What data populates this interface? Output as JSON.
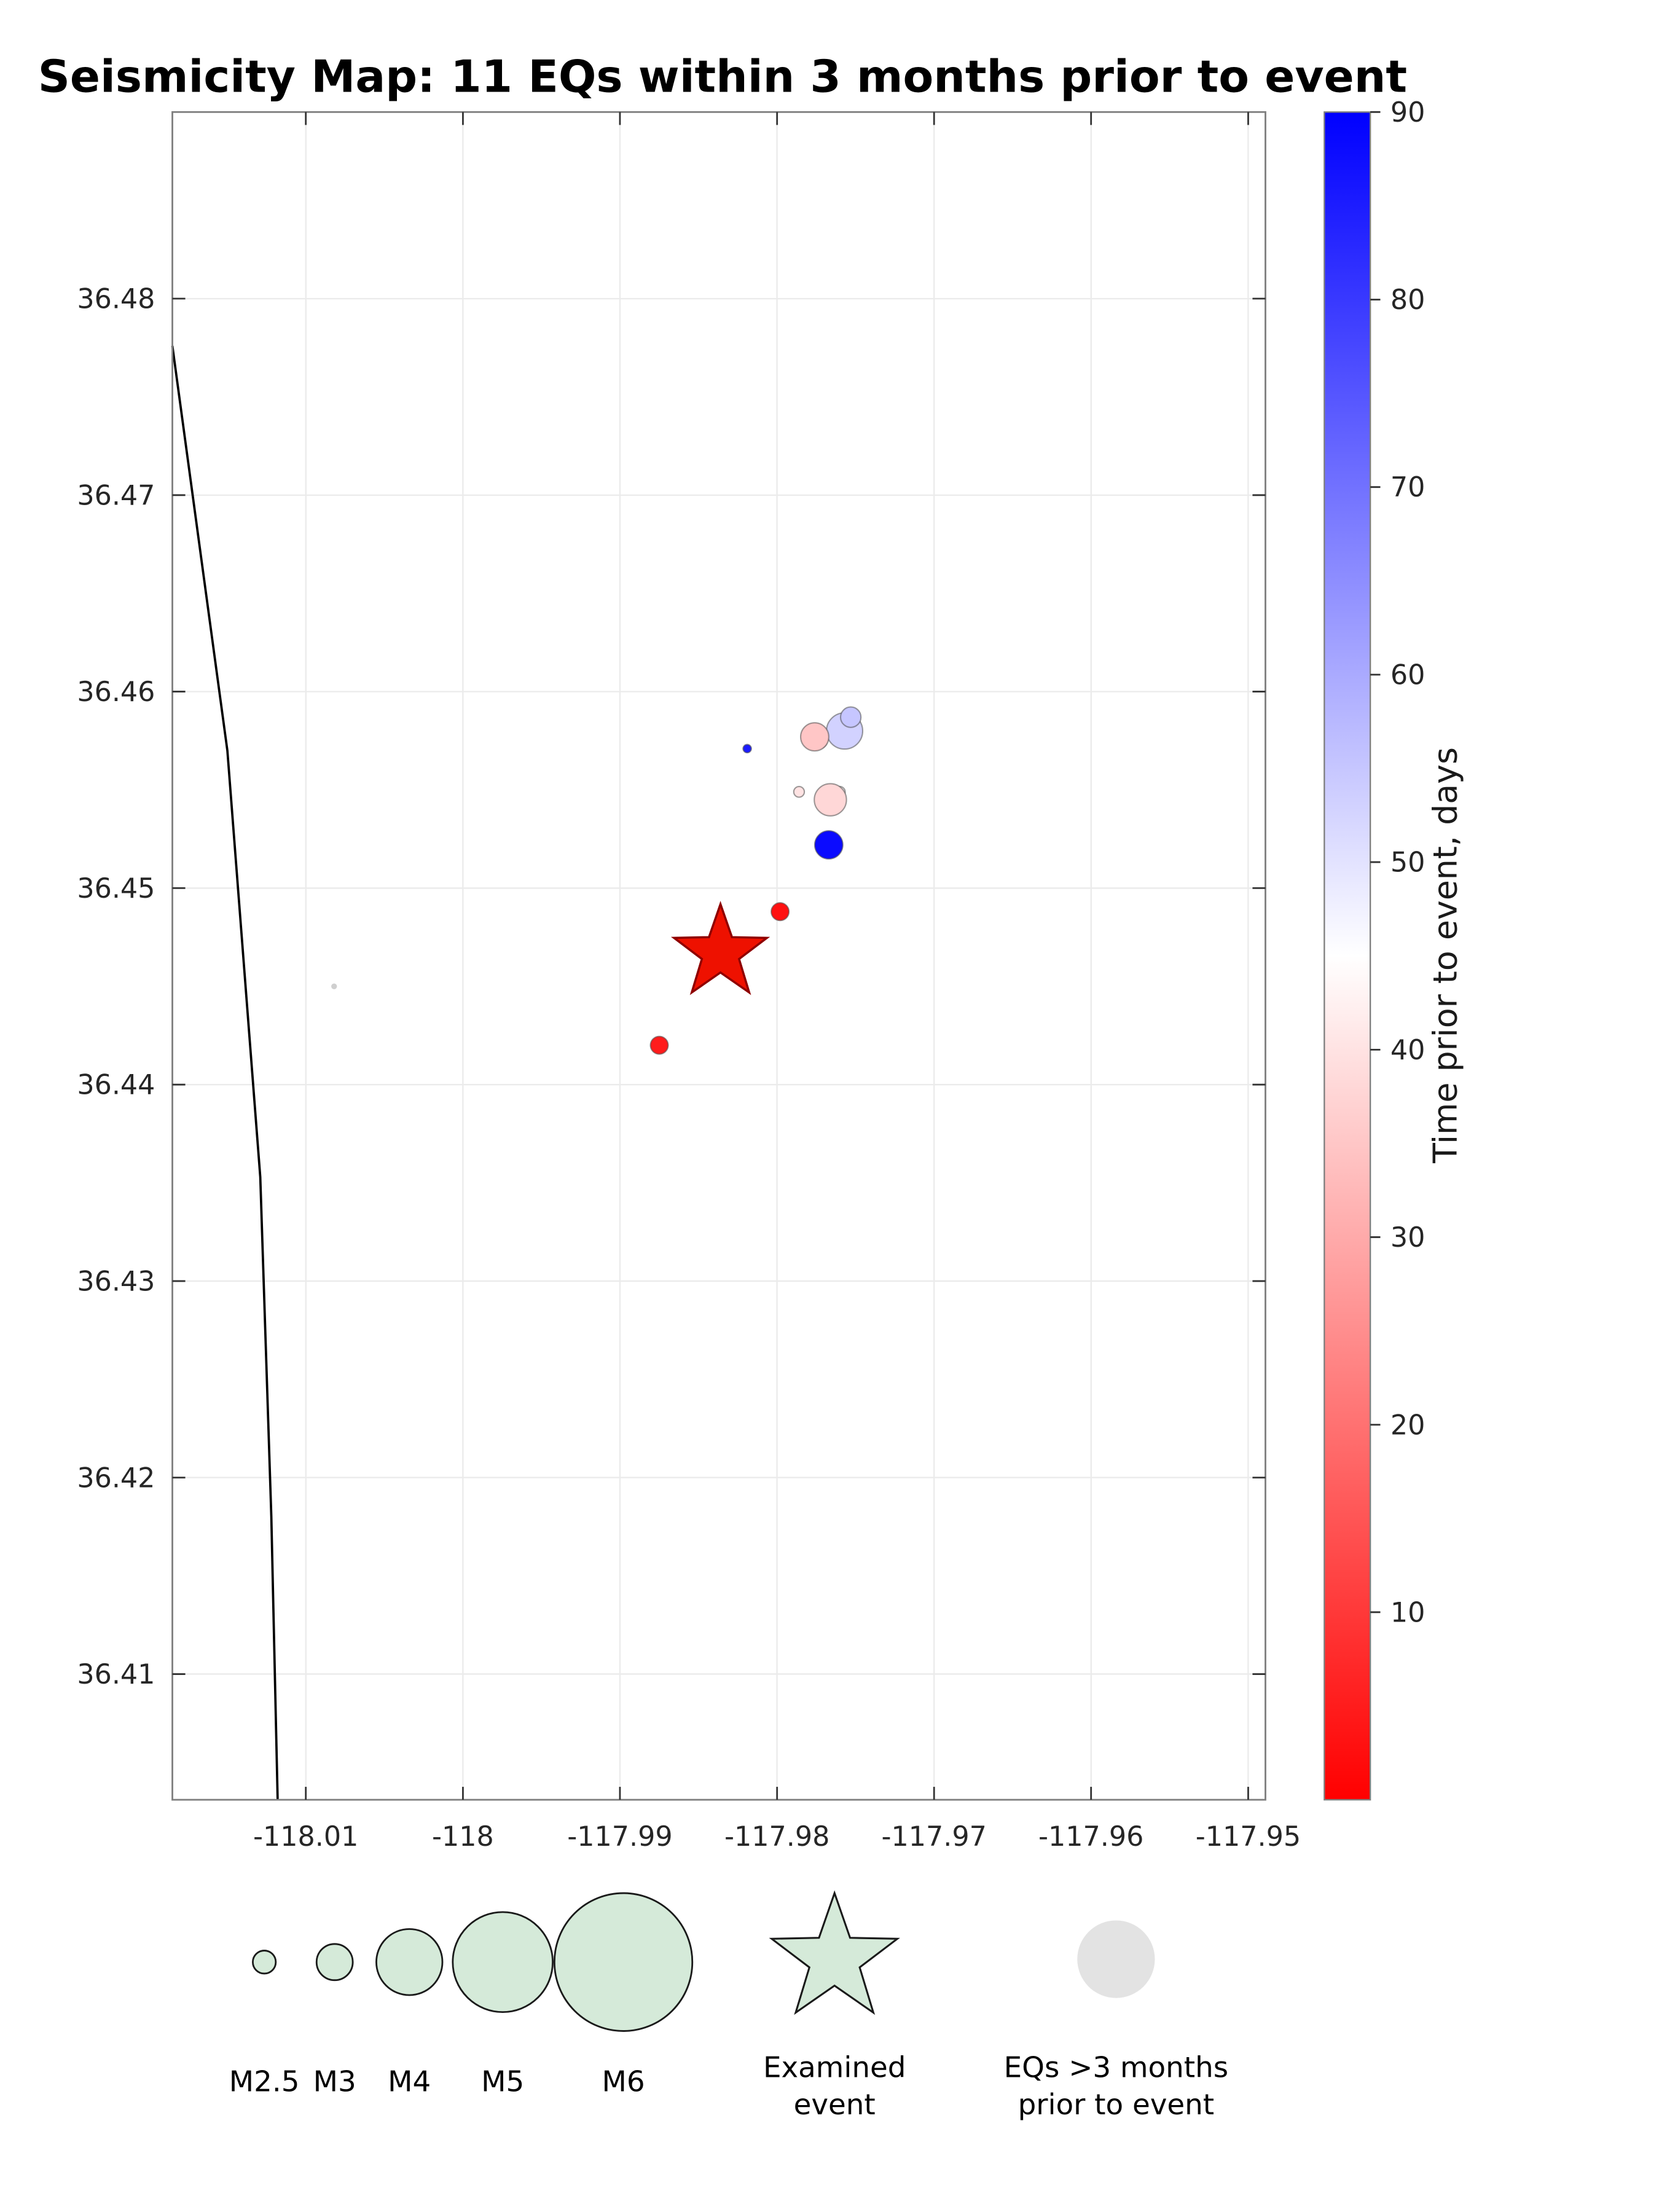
{
  "chart_data": {
    "type": "scatter",
    "title": "Seismicity Map: 11 EQs within 3 months prior to event",
    "xlabel": "",
    "ylabel": "",
    "xlim": [
      -118.0185,
      -117.9489
    ],
    "ylim": [
      36.4036,
      36.4895
    ],
    "grid": true,
    "x_ticks": [
      -118.01,
      -118,
      -117.99,
      -117.98,
      -117.97,
      -117.96,
      -117.95
    ],
    "x_tick_labels": [
      "-118.01",
      "-118",
      "-117.99",
      "-117.98",
      "-117.97",
      "-117.96",
      "-117.95"
    ],
    "y_ticks": [
      36.41,
      36.42,
      36.43,
      36.44,
      36.45,
      36.46,
      36.47,
      36.48
    ],
    "y_tick_labels": [
      "36.41",
      "36.42",
      "36.43",
      "36.44",
      "36.45",
      "36.46",
      "36.47",
      "36.48"
    ],
    "colorbar": {
      "label": "Time prior to event, days",
      "min": 0,
      "max": 90,
      "ticks": [
        10,
        20,
        30,
        40,
        50,
        60,
        70,
        80,
        90
      ],
      "color_min": "#ff0000",
      "color_mid": "#ffffff",
      "color_max": "#0000ff"
    },
    "examined_event": {
      "lon": -117.9836,
      "lat": 36.4467,
      "color": "#ee1100"
    },
    "earthquakes": [
      {
        "lon": -117.9773,
        "lat": 36.4575,
        "mag": 2.2,
        "days": 42
      },
      {
        "lon": -117.976,
        "lat": 36.4549,
        "mag": 2.0,
        "days": 44
      },
      {
        "lon": -117.9757,
        "lat": 36.458,
        "mag": 3.0,
        "days": 53
      },
      {
        "lon": -117.9753,
        "lat": 36.4587,
        "mag": 2.4,
        "days": 55
      },
      {
        "lon": -117.9776,
        "lat": 36.4577,
        "mag": 2.7,
        "days": 35
      },
      {
        "lon": -117.9819,
        "lat": 36.4571,
        "mag": 1.9,
        "days": 85
      },
      {
        "lon": -117.9786,
        "lat": 36.4549,
        "mag": 2.0,
        "days": 40
      },
      {
        "lon": -117.9766,
        "lat": 36.4545,
        "mag": 2.85,
        "days": 38
      },
      {
        "lon": -117.9767,
        "lat": 36.4522,
        "mag": 2.7,
        "days": 88
      },
      {
        "lon": -117.9798,
        "lat": 36.4488,
        "mag": 2.3,
        "days": 3
      },
      {
        "lon": -117.9875,
        "lat": 36.442,
        "mag": 2.3,
        "days": 5
      }
    ],
    "background_eqs": [
      {
        "lon": -118.0082,
        "lat": 36.445,
        "mag": 1.6
      }
    ],
    "fault_line": [
      [
        -118.0185,
        36.4776
      ],
      [
        -118.015,
        36.457
      ],
      [
        -118.0129,
        36.4353
      ],
      [
        -118.0122,
        36.418
      ],
      [
        -118.0118,
        36.4036
      ]
    ],
    "legend": {
      "magnitudes": [
        {
          "label": "M2.5",
          "mag": 2.5
        },
        {
          "label": "M3",
          "mag": 3
        },
        {
          "label": "M4",
          "mag": 4
        },
        {
          "label": "M5",
          "mag": 5
        },
        {
          "label": "M6",
          "mag": 6
        }
      ],
      "swatch_color": "#d5ead9",
      "examined_label_lines": [
        "Examined",
        "event"
      ],
      "background_label_lines": [
        "EQs >3 months",
        "prior to event"
      ],
      "background_swatch_color": "#e3e3e3"
    }
  }
}
